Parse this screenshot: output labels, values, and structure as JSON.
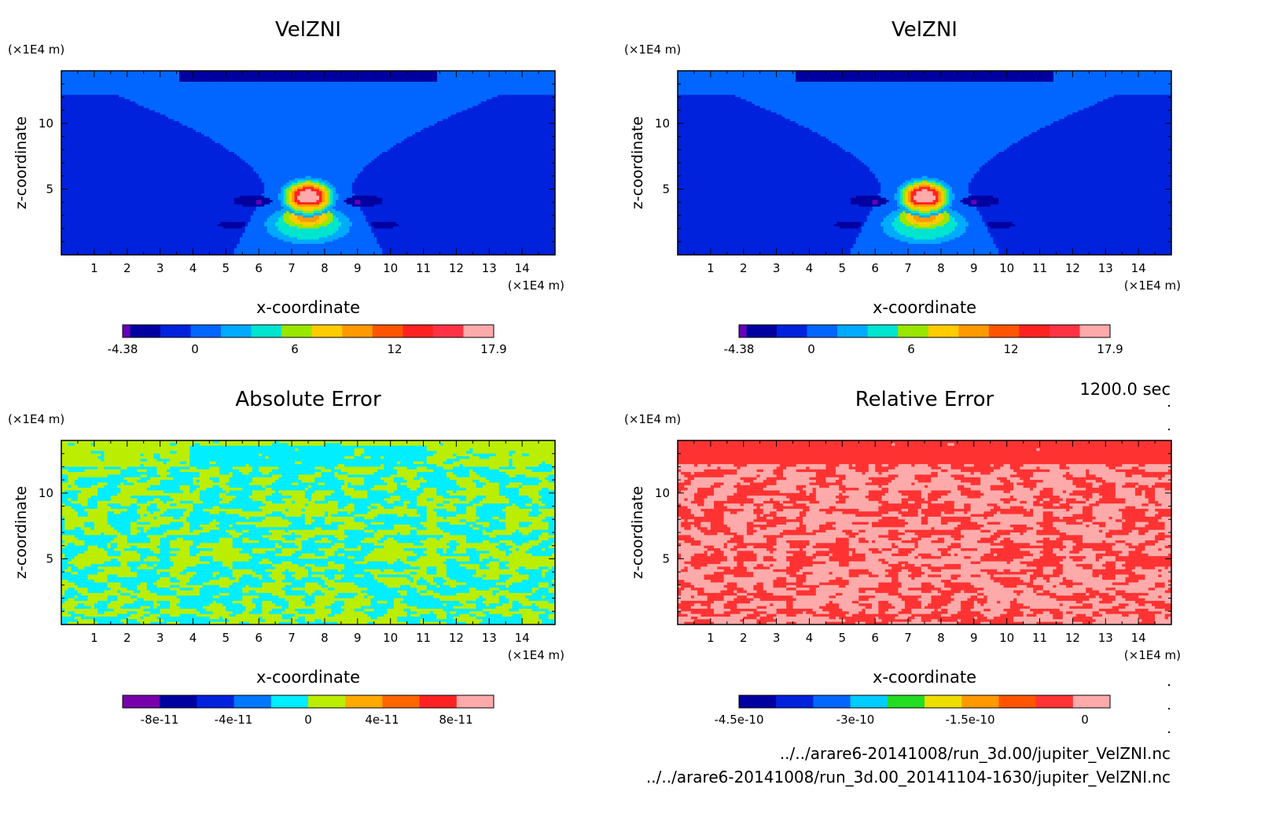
{
  "page": {
    "time_stamp": "1200.0 sec",
    "file_1": "../../arare6-20141008/run_3d.00/jupiter_VelZNI.nc",
    "file_2": "../../arare6-20141008/run_3d.00_20141104-1630/jupiter_VelZNI.nc"
  },
  "chart_data": [
    {
      "type": "heatmap",
      "title": "VelZNI",
      "xlabel": "x-coordinate",
      "ylabel": "z-coordinate",
      "xunit": "(×1E4 m)",
      "yunit": "(×1E4 m)",
      "xlim": [
        0,
        15
      ],
      "ylim": [
        0,
        14
      ],
      "xticks": [
        "1",
        "2",
        "3",
        "4",
        "5",
        "6",
        "7",
        "8",
        "9",
        "10",
        "11",
        "12",
        "13",
        "14"
      ],
      "yticks": [
        "5",
        "10"
      ],
      "pattern": "plume",
      "colorbar": {
        "colors": [
          "#6600bb",
          "#0000a0",
          "#0022dd",
          "#0066ff",
          "#00aaff",
          "#00e5d0",
          "#99e600",
          "#ffcc00",
          "#ff9900",
          "#ff5500",
          "#ff2222",
          "#ff3344",
          "#ffaaaa"
        ],
        "labels": [
          "-4.38",
          "0",
          "6",
          "12",
          "17.9"
        ]
      },
      "features": {
        "vmin": -4.38,
        "vmax": 17.9,
        "max_x": 7.5,
        "max_z": 4.2
      }
    },
    {
      "type": "heatmap",
      "title": "VelZNI",
      "xlabel": "x-coordinate",
      "ylabel": "z-coordinate",
      "xunit": "(×1E4 m)",
      "yunit": "(×1E4 m)",
      "xlim": [
        0,
        15
      ],
      "ylim": [
        0,
        14
      ],
      "xticks": [
        "1",
        "2",
        "3",
        "4",
        "5",
        "6",
        "7",
        "8",
        "9",
        "10",
        "11",
        "12",
        "13",
        "14"
      ],
      "yticks": [
        "5",
        "10"
      ],
      "pattern": "plume",
      "colorbar": {
        "colors": [
          "#6600bb",
          "#0000a0",
          "#0022dd",
          "#0066ff",
          "#00aaff",
          "#00e5d0",
          "#99e600",
          "#ffcc00",
          "#ff9900",
          "#ff5500",
          "#ff2222",
          "#ff3344",
          "#ffaaaa"
        ],
        "labels": [
          "-4.38",
          "0",
          "6",
          "12",
          "17.9"
        ]
      },
      "features": {
        "vmin": -4.38,
        "vmax": 17.9,
        "max_x": 7.5,
        "max_z": 4.2
      }
    },
    {
      "type": "heatmap",
      "title": "Absolute Error",
      "xlabel": "x-coordinate",
      "ylabel": "z-coordinate",
      "xunit": "(×1E4 m)",
      "yunit": "(×1E4 m)",
      "xlim": [
        0,
        15
      ],
      "ylim": [
        0,
        14
      ],
      "xticks": [
        "1",
        "2",
        "3",
        "4",
        "5",
        "6",
        "7",
        "8",
        "9",
        "10",
        "11",
        "12",
        "13",
        "14"
      ],
      "yticks": [
        "5",
        "10"
      ],
      "pattern": "noise_abs",
      "colorbar": {
        "colors": [
          "#7700aa",
          "#0000a0",
          "#0022dd",
          "#0077ff",
          "#00eeff",
          "#bbee00",
          "#ffaa00",
          "#ff6600",
          "#ff2222",
          "#ffaaaa"
        ],
        "labels": [
          "-8e-11",
          "-4e-11",
          "0",
          "4e-11",
          "8e-11"
        ]
      }
    },
    {
      "type": "heatmap",
      "title": "Relative Error",
      "xlabel": "x-coordinate",
      "ylabel": "z-coordinate",
      "xunit": "(×1E4 m)",
      "yunit": "(×1E4 m)",
      "xlim": [
        0,
        15
      ],
      "ylim": [
        0,
        14
      ],
      "xticks": [
        "1",
        "2",
        "3",
        "4",
        "5",
        "6",
        "7",
        "8",
        "9",
        "10",
        "11",
        "12",
        "13",
        "14"
      ],
      "yticks": [
        "5",
        "10"
      ],
      "pattern": "noise_rel",
      "colorbar": {
        "colors": [
          "#0000a0",
          "#0022dd",
          "#0066ff",
          "#00ccff",
          "#22dd22",
          "#eedd00",
          "#ff9900",
          "#ff5500",
          "#ff3333",
          "#ffaaaa"
        ],
        "labels": [
          "-4.5e-10",
          "-3e-10",
          "-1.5e-10",
          "0"
        ]
      }
    }
  ]
}
